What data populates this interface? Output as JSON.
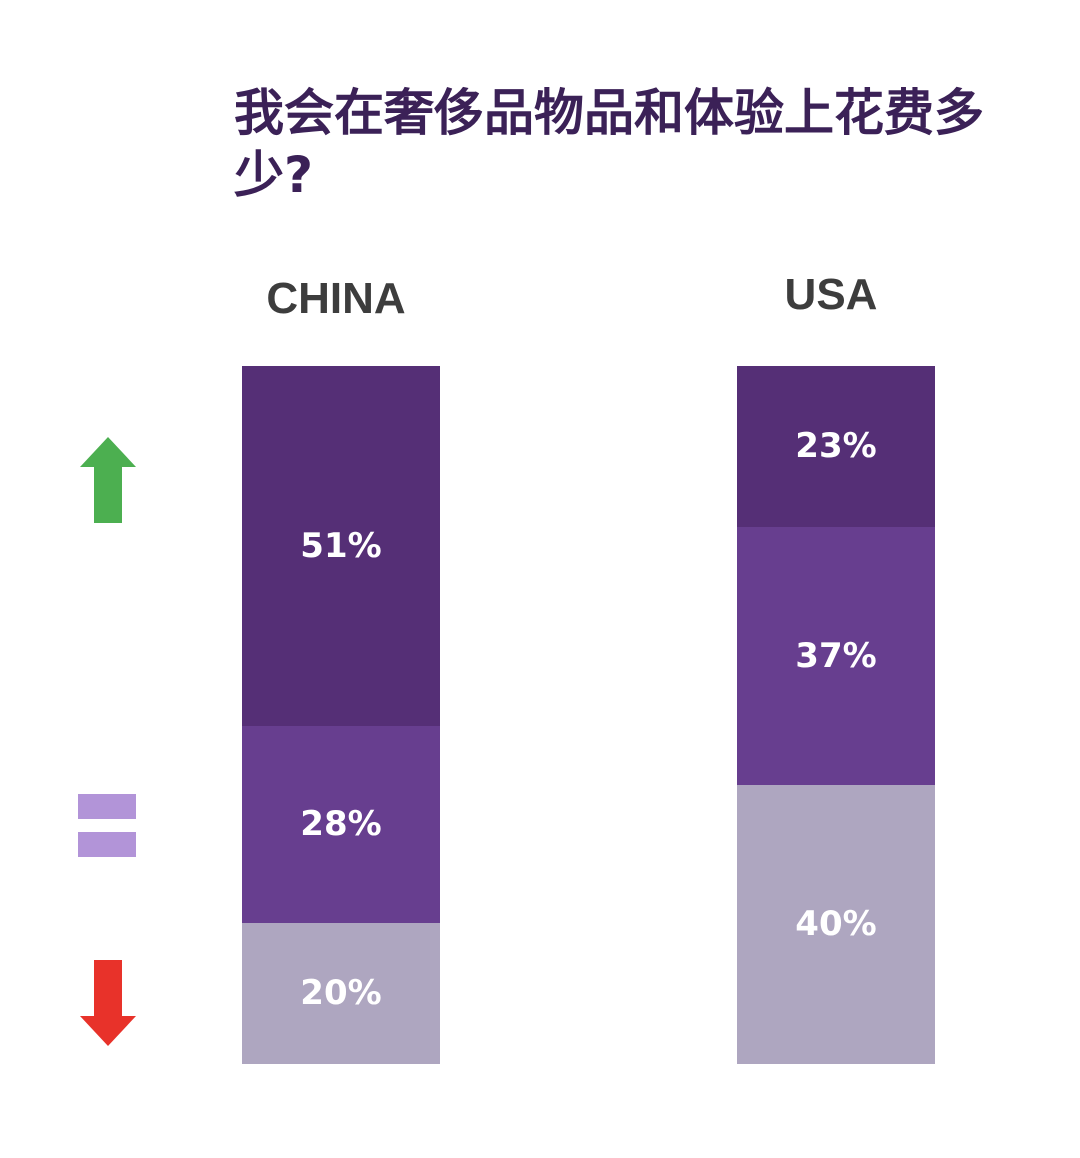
{
  "title": "我会在奢侈品物品和体验上花费多少?",
  "legend_icons": [
    {
      "name": "up-arrow-icon",
      "meaning": "up",
      "color": "#4caf50"
    },
    {
      "name": "equal-icon",
      "meaning": "equal",
      "color": "#b294d8"
    },
    {
      "name": "down-arrow-icon",
      "meaning": "down",
      "color": "#e8322a"
    }
  ],
  "colors": {
    "up": "#552f76",
    "equal": "#673e8f",
    "down": "#aea6c0"
  },
  "chart_data": {
    "type": "bar",
    "stacked": true,
    "title": "我会在奢侈品物品和体验上花费多少?",
    "categories": [
      "CHINA",
      "USA"
    ],
    "series": [
      {
        "key": "up",
        "values": [
          51,
          23
        ],
        "labels": [
          "51%",
          "23%"
        ]
      },
      {
        "key": "equal",
        "values": [
          28,
          37
        ],
        "labels": [
          "28%",
          "37%"
        ]
      },
      {
        "key": "down",
        "values": [
          20,
          40
        ],
        "labels": [
          "20%",
          "40%"
        ]
      }
    ],
    "ylim": [
      0,
      100
    ],
    "grid": false,
    "legend": "left"
  }
}
